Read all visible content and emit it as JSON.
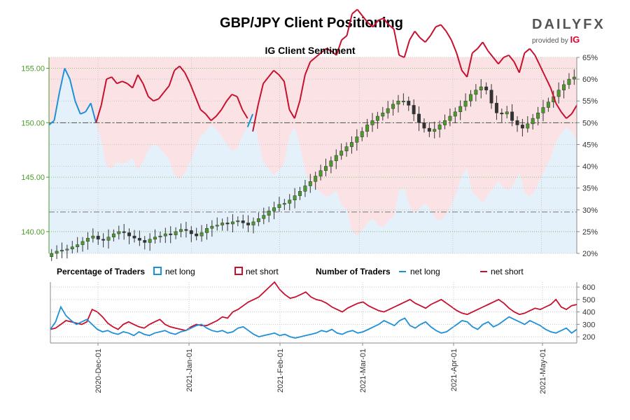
{
  "header": {
    "title": "GBP/JPY Client Positioning",
    "logo_word": "DAILYFX",
    "logo_sub": "provided by",
    "logo_ig": "IG"
  },
  "colors": {
    "long": "#1e90d8",
    "short": "#c8102e",
    "up_candle": "#4c9a2a",
    "down_candle": "#333333",
    "long_fill": "#e5f1fa",
    "short_fill": "#fbe3e5",
    "price_axis": "#4c9a2a"
  },
  "chart_data": [
    {
      "type": "candlestick+line",
      "title": "IG Client Sentiment",
      "price_axis": {
        "side": "left",
        "ticks": [
          "140.00",
          "145.00",
          "150.00",
          "155.00"
        ],
        "ylim": [
          138,
          156
        ]
      },
      "percent_axis": {
        "side": "right",
        "ticks": [
          "20%",
          "25%",
          "30%",
          "35%",
          "40%",
          "45%",
          "50%",
          "55%",
          "60%",
          "65%"
        ],
        "ylim": [
          20,
          65
        ]
      },
      "reference_lines": {
        "price": 141.8,
        "percent": 50
      },
      "price_close_series": [
        138.0,
        138.2,
        138.3,
        138.4,
        138.6,
        138.8,
        139.1,
        139.4,
        139.6,
        139.3,
        139.2,
        139.5,
        139.8,
        140.0,
        139.9,
        139.6,
        139.4,
        139.2,
        139.0,
        139.3,
        139.5,
        139.6,
        139.8,
        139.7,
        140.0,
        140.2,
        140.1,
        139.8,
        139.6,
        139.9,
        140.3,
        140.5,
        140.6,
        140.8,
        140.7,
        140.9,
        141.0,
        140.8,
        140.6,
        140.9,
        141.2,
        141.5,
        141.9,
        142.2,
        142.5,
        142.6,
        142.9,
        143.3,
        143.7,
        144.2,
        144.6,
        145.1,
        145.6,
        146.0,
        146.5,
        147.0,
        147.4,
        147.8,
        148.2,
        148.7,
        149.2,
        149.8,
        150.2,
        150.6,
        150.9,
        151.3,
        151.7,
        152.0,
        152.0,
        151.6,
        150.8,
        150.0,
        149.5,
        149.2,
        149.4,
        149.8,
        150.2,
        150.6,
        151.0,
        151.5,
        152.0,
        152.6,
        153.0,
        153.3,
        153.0,
        151.8,
        150.9,
        150.8,
        151.0,
        150.2,
        149.8,
        149.5,
        149.9,
        150.4,
        150.9,
        151.4,
        151.9,
        152.4,
        153.0,
        153.5,
        154.0,
        154.2
      ],
      "net_long_pct": [
        49.5,
        50.5,
        57.0,
        62.5,
        60.0,
        55.0,
        52.0,
        52.5,
        54.5,
        50.0,
        46.0,
        40.0,
        39.5,
        41.0,
        40.5,
        41.0,
        42.0,
        39.0,
        41.0,
        44.0,
        45.0,
        44.5,
        43.0,
        41.5,
        38.0,
        37.0,
        38.5,
        41.0,
        44.0,
        47.0,
        48.0,
        49.5,
        48.5,
        47.0,
        45.0,
        43.5,
        44.0,
        47.0,
        49.0,
        52.0,
        46.0,
        41.0,
        39.5,
        38.0,
        39.0,
        40.5,
        47.0,
        49.0,
        45.0,
        39.0,
        36.0,
        35.0,
        34.0,
        33.0,
        33.5,
        34.5,
        31.0,
        30.0,
        25.0,
        24.0,
        25.5,
        27.0,
        28.0,
        26.5,
        26.0,
        27.5,
        28.5,
        34.5,
        35.0,
        31.0,
        29.0,
        30.5,
        31.5,
        30.0,
        28.0,
        27.5,
        29.0,
        31.0,
        34.0,
        38.0,
        39.5,
        34.0,
        33.0,
        31.5,
        33.5,
        35.0,
        36.5,
        35.0,
        34.5,
        36.0,
        38.5,
        34.0,
        33.0,
        34.5,
        37.0,
        39.5,
        42.0,
        45.5,
        47.5,
        49.0,
        48.0,
        46.0
      ],
      "net_short_pct": [
        50.5,
        49.5,
        43.0,
        37.5,
        40.0,
        45.0,
        48.0,
        47.5,
        45.5,
        50.0,
        54.0,
        60.0,
        60.5,
        59.0,
        59.5,
        59.0,
        58.0,
        61.0,
        59.0,
        56.0,
        55.0,
        55.5,
        57.0,
        58.5,
        62.0,
        63.0,
        61.5,
        59.0,
        56.0,
        53.0,
        52.0,
        50.5,
        51.5,
        53.0,
        55.0,
        56.5,
        56.0,
        53.0,
        51.0,
        48.0,
        54.0,
        59.0,
        60.5,
        62.0,
        61.0,
        59.5,
        53.0,
        51.0,
        55.0,
        61.0,
        64.0,
        65.0,
        66.0,
        67.0,
        66.5,
        65.5,
        69.0,
        70.0,
        75.0,
        76.0,
        74.5,
        73.0,
        72.0,
        73.5,
        74.0,
        72.5,
        71.5,
        65.5,
        65.0,
        69.0,
        71.0,
        69.5,
        68.5,
        70.0,
        72.0,
        72.5,
        71.0,
        69.0,
        66.0,
        62.0,
        60.5,
        66.0,
        67.0,
        68.5,
        66.5,
        65.0,
        63.5,
        65.0,
        65.5,
        64.0,
        61.5,
        66.0,
        67.0,
        65.5,
        63.0,
        60.5,
        58.0,
        54.5,
        52.5,
        51.0,
        52.0,
        54.0
      ]
    },
    {
      "type": "line",
      "legend": {
        "percentage_title": "Percentage of Traders",
        "number_title": "Number of Traders",
        "net_long": "net long",
        "net_short": "net short"
      },
      "y_axis": {
        "side": "right",
        "ticks": [
          "200",
          "300",
          "400",
          "500",
          "600"
        ],
        "ylim": [
          150,
          640
        ]
      },
      "x_axis_ticks": [
        "2020-Dec-01",
        "2021-Jan-01",
        "2021-Feb-01",
        "2021-Mar-01",
        "2021-Apr-01",
        "2021-May-01"
      ],
      "net_long_traders": [
        260,
        320,
        440,
        370,
        330,
        300,
        320,
        340,
        300,
        260,
        240,
        250,
        230,
        220,
        240,
        230,
        210,
        240,
        220,
        210,
        230,
        240,
        250,
        230,
        220,
        240,
        250,
        270,
        290,
        300,
        270,
        250,
        240,
        250,
        230,
        240,
        270,
        280,
        250,
        220,
        200,
        210,
        220,
        230,
        210,
        220,
        200,
        190,
        200,
        210,
        220,
        230,
        250,
        240,
        260,
        230,
        220,
        240,
        250,
        230,
        240,
        260,
        280,
        300,
        330,
        310,
        290,
        330,
        350,
        290,
        270,
        300,
        320,
        280,
        250,
        230,
        240,
        270,
        300,
        330,
        320,
        280,
        260,
        300,
        320,
        280,
        300,
        330,
        360,
        340,
        320,
        300,
        330,
        310,
        290,
        260,
        240,
        230,
        250,
        270,
        230,
        260
      ],
      "net_short_traders": [
        260,
        270,
        300,
        330,
        320,
        310,
        300,
        320,
        420,
        400,
        360,
        310,
        280,
        260,
        300,
        320,
        300,
        280,
        270,
        300,
        320,
        340,
        300,
        280,
        270,
        260,
        250,
        280,
        300,
        290,
        290,
        310,
        330,
        360,
        350,
        400,
        420,
        450,
        480,
        500,
        520,
        560,
        600,
        640,
        580,
        540,
        510,
        520,
        540,
        560,
        520,
        500,
        490,
        470,
        440,
        420,
        400,
        430,
        450,
        470,
        480,
        450,
        430,
        410,
        400,
        420,
        440,
        460,
        480,
        500,
        470,
        450,
        430,
        460,
        480,
        500,
        470,
        440,
        410,
        390,
        380,
        400,
        420,
        440,
        460,
        480,
        500,
        470,
        430,
        400,
        380,
        390,
        410,
        430,
        420,
        440,
        460,
        500,
        440,
        420,
        450,
        460
      ]
    }
  ]
}
